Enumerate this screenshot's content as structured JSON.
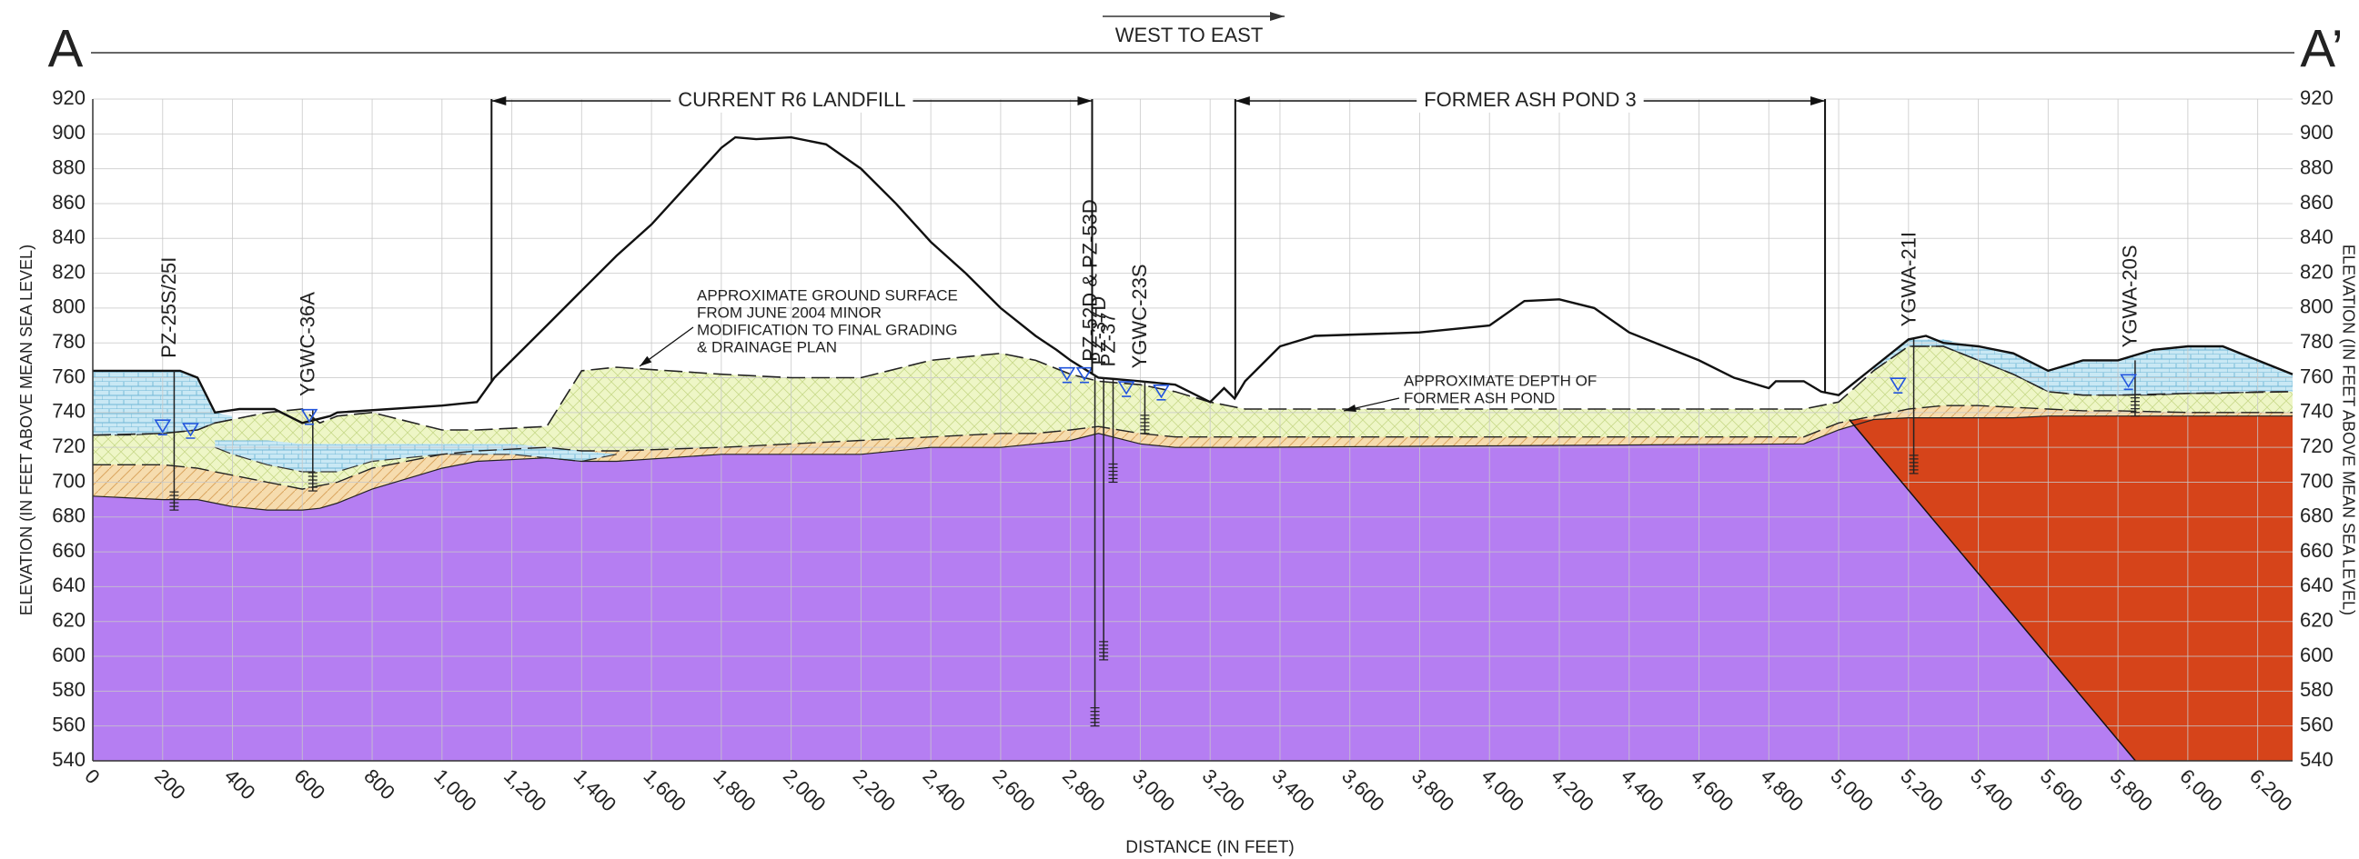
{
  "header": {
    "left_label": "A",
    "right_label": "A’",
    "direction": "WEST TO EAST"
  },
  "axes": {
    "xlabel": "DISTANCE (IN FEET)",
    "ylabel": "ELEVATION (IN FEET ABOVE MEAN SEA LEVEL)",
    "xlim": [
      0,
      6300
    ],
    "ylim": [
      540,
      920
    ],
    "xticks": [
      0,
      200,
      400,
      600,
      800,
      {
        "value": 1000,
        "label": "1,000"
      },
      {
        "value": 1200,
        "label": "1,200"
      },
      {
        "value": 1400,
        "label": "1,400"
      },
      {
        "value": 1600,
        "label": "1,600"
      },
      {
        "value": 1800,
        "label": "1,800"
      },
      {
        "value": 2000,
        "label": "2,000"
      },
      {
        "value": 2200,
        "label": "2,200"
      },
      {
        "value": 2400,
        "label": "2,400"
      },
      {
        "value": 2600,
        "label": "2,600"
      },
      {
        "value": 2800,
        "label": "2,800"
      },
      {
        "value": 3000,
        "label": "3,000"
      },
      {
        "value": 3200,
        "label": "3,200"
      },
      {
        "value": 3400,
        "label": "3,400"
      },
      {
        "value": 3600,
        "label": "3,600"
      },
      {
        "value": 3800,
        "label": "3,800"
      },
      {
        "value": 4000,
        "label": "4,000"
      },
      {
        "value": 4200,
        "label": "4,200"
      },
      {
        "value": 4400,
        "label": "4,400"
      },
      {
        "value": 4600,
        "label": "4,600"
      },
      {
        "value": 4800,
        "label": "4,800"
      },
      {
        "value": 5000,
        "label": "5,000"
      },
      {
        "value": 5200,
        "label": "5,200"
      },
      {
        "value": 5400,
        "label": "5,400"
      },
      {
        "value": 5600,
        "label": "5,600"
      },
      {
        "value": 5800,
        "label": "5,800"
      },
      {
        "value": 6000,
        "label": "6,000"
      },
      {
        "value": 6200,
        "label": "6,200"
      }
    ],
    "yticks": [
      540,
      560,
      580,
      600,
      620,
      640,
      660,
      680,
      700,
      720,
      740,
      760,
      780,
      800,
      820,
      840,
      860,
      880,
      900,
      920
    ],
    "grid": true
  },
  "colors": {
    "fill": "#eef6c6",
    "sand": "#f6dcae",
    "rock": "#b57ef2",
    "weathered": "#d6441a",
    "lens": "#c9e8f4",
    "water": "#2255dd"
  },
  "ground": {
    "x": [
      0,
      250,
      300,
      350,
      420,
      520,
      600,
      680,
      700,
      1000,
      1100,
      1150,
      1200,
      1300,
      1400,
      1500,
      1600,
      1700,
      1800,
      1840,
      1900,
      2000,
      2100,
      2200,
      2300,
      2400,
      2500,
      2600,
      2700,
      2760,
      2800,
      2880,
      3000,
      3100,
      3200,
      3240,
      3270,
      3300,
      3400,
      3500,
      3800,
      4000,
      4100,
      4200,
      4300,
      4400,
      4600,
      4700,
      4800,
      4820,
      4900,
      4950,
      5000,
      5100,
      5200,
      5250,
      5300,
      5400,
      5500,
      5600,
      5700,
      5800,
      5900,
      6000,
      6100,
      6200,
      6300
    ],
    "y": [
      764,
      764,
      760,
      740,
      742,
      742,
      734,
      738,
      740,
      744,
      746,
      760,
      770,
      790,
      810,
      830,
      848,
      870,
      892,
      898,
      897,
      898,
      894,
      880,
      860,
      838,
      820,
      800,
      784,
      776,
      770,
      760,
      758,
      756,
      746,
      754,
      748,
      758,
      778,
      784,
      786,
      790,
      804,
      805,
      800,
      786,
      770,
      760,
      754,
      758,
      758,
      752,
      750,
      766,
      782,
      784,
      780,
      778,
      774,
      764,
      770,
      770,
      776,
      778,
      778,
      770,
      762
    ]
  },
  "profiles": {
    "x": [
      0,
      200,
      300,
      350,
      400,
      500,
      600,
      650,
      700,
      800,
      1000,
      1100,
      1300,
      1400,
      1500,
      1800,
      2000,
      2200,
      2400,
      2600,
      2700,
      2800,
      2880,
      3000,
      3100,
      3200,
      3300,
      4900,
      5000,
      5100,
      5200,
      5300,
      5400,
      5500,
      5600,
      5700,
      5800,
      6000,
      6300
    ],
    "fill_top": [
      727,
      728,
      730,
      734,
      736,
      740,
      742,
      734,
      738,
      740,
      730,
      730,
      732,
      764,
      766,
      762,
      760,
      760,
      770,
      774,
      770,
      762,
      758,
      756,
      752,
      746,
      742,
      742,
      746,
      764,
      778,
      778,
      770,
      762,
      752,
      750,
      750,
      751,
      752
    ],
    "sand_top": [
      710,
      710,
      708,
      706,
      704,
      700,
      696,
      698,
      700,
      708,
      716,
      718,
      720,
      718,
      718,
      720,
      722,
      724,
      726,
      728,
      728,
      730,
      732,
      728,
      726,
      726,
      726,
      726,
      734,
      738,
      742,
      744,
      744,
      743,
      742,
      741,
      741,
      740,
      740
    ],
    "rock_top": [
      692,
      690,
      690,
      688,
      686,
      684,
      684,
      685,
      688,
      696,
      708,
      712,
      714,
      712,
      712,
      716,
      716,
      716,
      720,
      720,
      722,
      724,
      728,
      722,
      720,
      720,
      720,
      722,
      730,
      736,
      737,
      737,
      737,
      737,
      738,
      738,
      738,
      738,
      738
    ]
  },
  "lenses": [
    {
      "x": [
        0,
        100,
        200,
        250,
        300,
        350,
        400
      ],
      "top": [
        764,
        764,
        764,
        764,
        760,
        740,
        738
      ],
      "bottom": [
        727,
        727,
        728,
        729,
        730,
        734,
        736
      ]
    },
    {
      "x": [
        350,
        400,
        500,
        600,
        700,
        800,
        1000,
        1200,
        1400,
        1500
      ],
      "top": [
        724,
        724,
        724,
        722,
        722,
        722,
        722,
        722,
        718,
        716
      ],
      "bottom": [
        720,
        716,
        710,
        706,
        706,
        712,
        716,
        716,
        712,
        716
      ]
    },
    {
      "x": [
        5100,
        5200,
        5300,
        5400,
        5500,
        5600,
        5700,
        5800,
        5900,
        6000,
        6100,
        6200,
        6300
      ],
      "top": [
        766,
        782,
        782,
        778,
        774,
        764,
        770,
        770,
        776,
        778,
        778,
        770,
        762
      ],
      "bottom": [
        764,
        778,
        778,
        770,
        762,
        752,
        750,
        750,
        750,
        751,
        751,
        752,
        752
      ]
    }
  ],
  "fault": {
    "x": [
      5030,
      5850
    ],
    "y": [
      736,
      540
    ]
  },
  "zones": [
    {
      "label": "CURRENT R6 LANDFILL",
      "x": [
        1142,
        2862
      ]
    },
    {
      "label": "FORMER ASH POND 3",
      "x": [
        3272,
        4961
      ]
    }
  ],
  "annotations": [
    {
      "lines": [
        "APPROXIMATE GROUND SURFACE",
        "FROM JUNE 2004 MINOR",
        "MODIFICATION TO FINAL GRADING",
        "& DRAINAGE PLAN"
      ]
    },
    {
      "lines": [
        "APPROXIMATE DEPTH OF",
        "FORMER ASH POND"
      ]
    }
  ],
  "wells": [
    {
      "name": "PZ-25S/25I",
      "x": 233,
      "top": 764,
      "bottom": 684
    },
    {
      "name": "YGWC-36A",
      "x": 630,
      "top": 742,
      "bottom": 695
    },
    {
      "name": "PZ-52D & PZ-53D",
      "x": 2870,
      "top": 762,
      "bottom": 560
    },
    {
      "name": "PZ-37D",
      "x": 2895,
      "top": 760,
      "bottom": 598
    },
    {
      "name": "PZ-37",
      "x": 2922,
      "top": 759,
      "bottom": 700
    },
    {
      "name": "YGWC-23S",
      "x": 3013,
      "top": 758,
      "bottom": 728
    },
    {
      "name": "YGWA-21I",
      "x": 5215,
      "top": 782,
      "bottom": 705
    },
    {
      "name": "YGWA-20S",
      "x": 5849,
      "top": 770,
      "bottom": 738
    }
  ],
  "water_levels": {
    "x": [
      200,
      280,
      620,
      2790,
      2840,
      2960,
      3060,
      5170,
      5830
    ],
    "y": [
      732,
      730,
      738,
      762,
      762,
      754,
      752,
      756,
      758
    ]
  }
}
